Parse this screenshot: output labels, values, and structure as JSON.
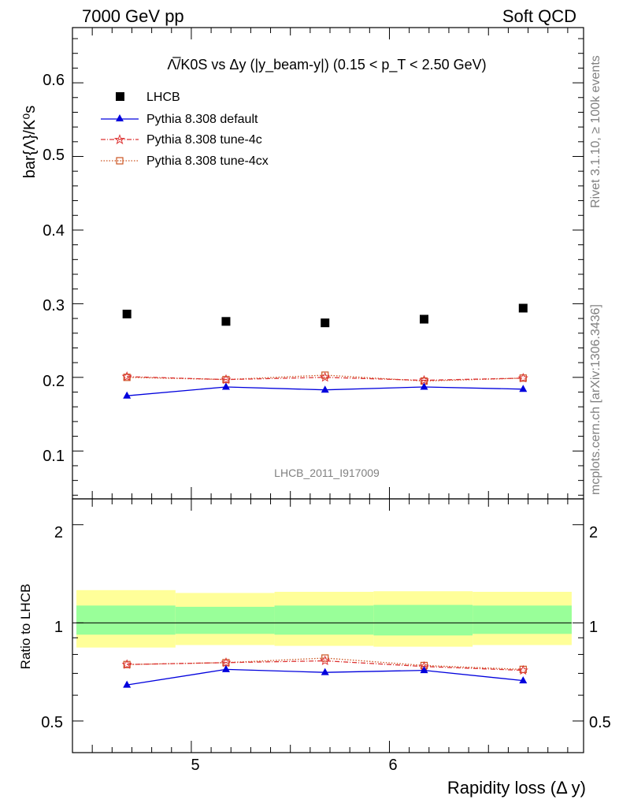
{
  "header": {
    "energy": "7000 GeV pp",
    "category": "Soft QCD",
    "rivet": "Rivet 3.1.10, ≥ 100k events",
    "source": "mcplots.cern.ch [arXiv:1306.3436]",
    "analysis": "LHCB_2011_I917009"
  },
  "chart_data": [
    {
      "type": "scatter",
      "panel": "main",
      "title": "Λ̅/K0S vs Δy (|y_beam-y|) (0.15 < p_T < 2.50 GeV)",
      "ylabel": "bar{Λ}/K⁰s",
      "xlim": [
        4.4,
        6.98
      ],
      "ylim": [
        0.035,
        0.675
      ],
      "ytick_labels": [
        "0.1",
        "0.2",
        "0.3",
        "0.4",
        "0.5",
        "0.6"
      ],
      "x": [
        4.675,
        5.175,
        5.675,
        6.175,
        6.675
      ],
      "series": [
        {
          "name": "LHCB",
          "values": [
            0.286,
            0.276,
            0.274,
            0.279,
            0.294
          ],
          "color": "#000000",
          "marker": "square"
        },
        {
          "name": "Pythia 8.308 default",
          "values": [
            0.175,
            0.187,
            0.183,
            0.187,
            0.184
          ],
          "color": "#0000dd",
          "marker": "triangle"
        },
        {
          "name": "Pythia 8.308 tune-4c",
          "values": [
            0.201,
            0.197,
            0.2,
            0.196,
            0.199
          ],
          "color": "#dd3333",
          "marker": "star"
        },
        {
          "name": "Pythia 8.308 tune-4cx",
          "values": [
            0.2,
            0.197,
            0.203,
            0.195,
            0.199
          ],
          "color": "#cc5522",
          "marker": "open-square"
        }
      ]
    },
    {
      "type": "scatter",
      "panel": "ratio",
      "ylabel": "Ratio to LHCB",
      "xlabel": "Rapidity loss (Δ y)",
      "xlim": [
        4.4,
        6.98
      ],
      "ylim": [
        0.4,
        2.4
      ],
      "log_y": true,
      "ytick_labels": [
        "0.5",
        "1",
        "2"
      ],
      "xtick_labels": [
        "5",
        "6"
      ],
      "band_edges": [
        4.42,
        4.92,
        5.42,
        5.92,
        6.42,
        6.92
      ],
      "band_inner_lo": [
        0.92,
        0.925,
        0.92,
        0.915,
        0.925
      ],
      "band_inner_hi": [
        1.13,
        1.12,
        1.13,
        1.135,
        1.13
      ],
      "band_outer_lo": [
        0.84,
        0.855,
        0.85,
        0.845,
        0.855
      ],
      "band_outer_hi": [
        1.26,
        1.235,
        1.245,
        1.25,
        1.245
      ],
      "x": [
        4.675,
        5.175,
        5.675,
        6.175,
        6.675
      ],
      "series": [
        {
          "name": "Pythia 8.308 default",
          "values": [
            0.645,
            0.72,
            0.705,
            0.715,
            0.665
          ],
          "color": "#0000dd",
          "marker": "triangle"
        },
        {
          "name": "Pythia 8.308 tune-4c",
          "values": [
            0.745,
            0.755,
            0.765,
            0.735,
            0.715
          ],
          "color": "#dd3333",
          "marker": "star"
        },
        {
          "name": "Pythia 8.308 tune-4cx",
          "values": [
            0.745,
            0.755,
            0.78,
            0.74,
            0.72
          ],
          "color": "#cc5522",
          "marker": "open-square"
        }
      ]
    }
  ]
}
